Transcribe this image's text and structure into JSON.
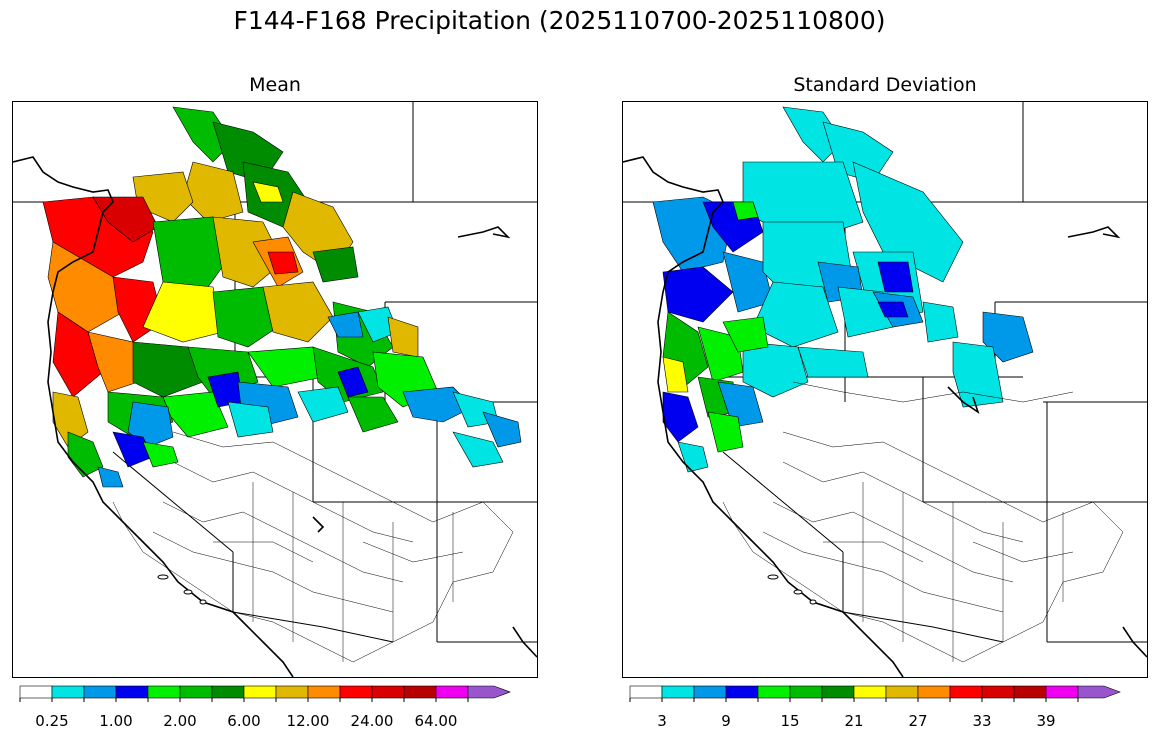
{
  "title": "F144-F168 Precipitation (2025110700-2025110800)",
  "panels": {
    "mean": {
      "title": "Mean"
    },
    "std": {
      "title": "Standard Deviation"
    }
  },
  "colorbar_colors": [
    "#ffffff",
    "#00e4e4",
    "#0098e8",
    "#0000f0",
    "#00f000",
    "#00bc00",
    "#008c00",
    "#ffff00",
    "#e0b800",
    "#ff8c00",
    "#ff0000",
    "#d80000",
    "#b80000",
    "#f000f0",
    "#9955cc"
  ],
  "mean_colorbar": {
    "labels": [
      "0.25",
      "1.00",
      "2.00",
      "6.00",
      "12.00",
      "24.00",
      "64.00"
    ],
    "label_positions_bins": [
      1,
      3,
      5,
      7,
      9,
      11,
      13
    ]
  },
  "std_colorbar": {
    "labels": [
      "3",
      "9",
      "15",
      "21",
      "27",
      "33",
      "39"
    ],
    "label_positions_bins": [
      1,
      3,
      5,
      7,
      9,
      11,
      13
    ]
  }
}
